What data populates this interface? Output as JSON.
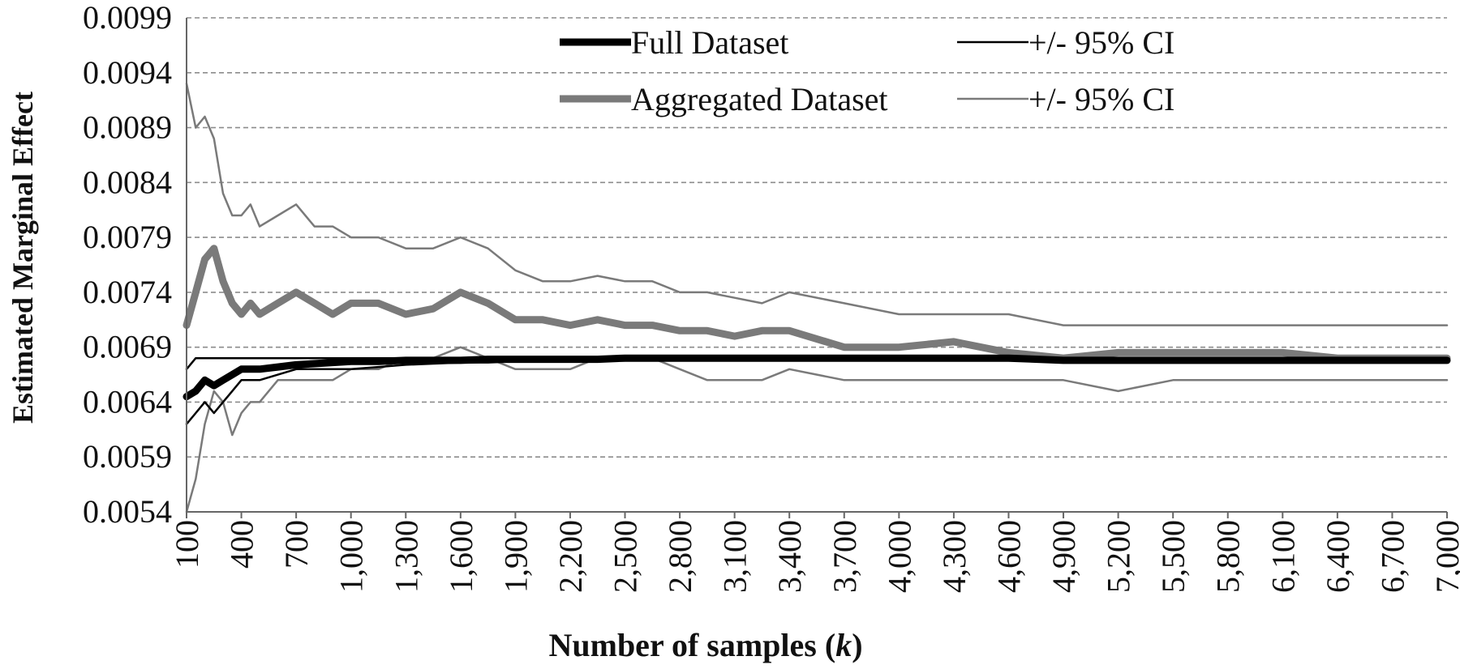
{
  "chart_data": {
    "type": "line",
    "title": "",
    "xlabel_prefix": "Number of samples (",
    "xlabel_var": "k",
    "xlabel_suffix": ")",
    "ylabel": "Estimated Marginal Effect",
    "xlim": [
      100,
      7000
    ],
    "ylim": [
      0.0054,
      0.0099
    ],
    "yticks": [
      "0.0054",
      "0.0059",
      "0.0064",
      "0.0069",
      "0.0074",
      "0.0079",
      "0.0084",
      "0.0089",
      "0.0094",
      "0.0099"
    ],
    "xticks": [
      "100",
      "400",
      "700",
      "1,000",
      "1,300",
      "1,600",
      "1,900",
      "2,200",
      "2,500",
      "2,800",
      "3,100",
      "3,400",
      "3,700",
      "4,000",
      "4,300",
      "4,600",
      "4,900",
      "5,200",
      "5,500",
      "5,800",
      "6,100",
      "6,400",
      "6,700",
      "7,000"
    ],
    "grid": "horizontal dashed",
    "legend_position": "top",
    "legend": {
      "full_label": "Full Dataset",
      "full_ci_label": "+/- 95% CI",
      "agg_label": "Aggregated Dataset",
      "agg_ci_label": "+/- 95% CI"
    },
    "colors": {
      "full": "#000000",
      "aggregated": "#7a7a7a",
      "grid": "#8c8c8c"
    },
    "x": [
      100,
      150,
      200,
      250,
      300,
      350,
      400,
      450,
      500,
      600,
      700,
      800,
      900,
      1000,
      1150,
      1300,
      1450,
      1600,
      1750,
      1900,
      2050,
      2200,
      2350,
      2500,
      2650,
      2800,
      2950,
      3100,
      3250,
      3400,
      3700,
      4000,
      4300,
      4600,
      4900,
      5200,
      5500,
      5800,
      6100,
      6400,
      6700,
      7000
    ],
    "series": [
      {
        "name": "Aggregated Dataset",
        "role": "estimate",
        "values": [
          0.0071,
          0.0074,
          0.0077,
          0.0078,
          0.0075,
          0.0073,
          0.0072,
          0.0073,
          0.0072,
          0.0073,
          0.0074,
          0.0073,
          0.0072,
          0.0073,
          0.0073,
          0.0072,
          0.00725,
          0.0074,
          0.0073,
          0.00715,
          0.00715,
          0.0071,
          0.00715,
          0.0071,
          0.0071,
          0.00705,
          0.00705,
          0.007,
          0.00705,
          0.00705,
          0.0069,
          0.0069,
          0.00695,
          0.00685,
          0.0068,
          0.00685,
          0.00685,
          0.00685,
          0.00685,
          0.0068,
          0.0068,
          0.0068
        ]
      },
      {
        "name": "+/- 95% CI",
        "role": "aggregated-upper",
        "values": [
          0.0093,
          0.0089,
          0.009,
          0.0088,
          0.0083,
          0.0081,
          0.0081,
          0.0082,
          0.008,
          0.0081,
          0.0082,
          0.008,
          0.008,
          0.0079,
          0.0079,
          0.0078,
          0.0078,
          0.0079,
          0.0078,
          0.0076,
          0.0075,
          0.0075,
          0.00755,
          0.0075,
          0.0075,
          0.0074,
          0.0074,
          0.00735,
          0.0073,
          0.0074,
          0.0073,
          0.0072,
          0.0072,
          0.0072,
          0.0071,
          0.0071,
          0.0071,
          0.0071,
          0.0071,
          0.0071,
          0.0071,
          0.0071
        ]
      },
      {
        "name": "+/- 95% CI",
        "role": "aggregated-lower",
        "values": [
          0.0054,
          0.0057,
          0.0062,
          0.0065,
          0.0064,
          0.0061,
          0.0063,
          0.0064,
          0.0064,
          0.0066,
          0.0066,
          0.0066,
          0.0066,
          0.0067,
          0.0067,
          0.0068,
          0.0068,
          0.0069,
          0.0068,
          0.0067,
          0.0067,
          0.0067,
          0.0068,
          0.0068,
          0.0068,
          0.0067,
          0.0066,
          0.0066,
          0.0066,
          0.0067,
          0.0066,
          0.0066,
          0.0066,
          0.0066,
          0.0066,
          0.0065,
          0.0066,
          0.0066,
          0.0066,
          0.0066,
          0.0066,
          0.0066
        ]
      },
      {
        "name": "Full Dataset",
        "role": "estimate",
        "values": [
          0.00645,
          0.0065,
          0.0066,
          0.00655,
          0.0066,
          0.00665,
          0.0067,
          0.0067,
          0.0067,
          0.00672,
          0.00674,
          0.00675,
          0.00676,
          0.00677,
          0.00677,
          0.00678,
          0.00678,
          0.00678,
          0.00679,
          0.00679,
          0.00679,
          0.00679,
          0.00679,
          0.0068,
          0.0068,
          0.0068,
          0.0068,
          0.0068,
          0.0068,
          0.0068,
          0.0068,
          0.0068,
          0.0068,
          0.0068,
          0.00678,
          0.00678,
          0.00678,
          0.00678,
          0.00678,
          0.00678,
          0.00678,
          0.00678
        ]
      },
      {
        "name": "+/- 95% CI",
        "role": "full-upper",
        "values": [
          0.0067,
          0.0068,
          0.0068,
          0.0068,
          0.0068,
          0.0068,
          0.0068,
          0.0068,
          0.0068,
          0.0068,
          0.0068,
          0.0068,
          0.0068,
          0.0068,
          0.0068,
          0.0068,
          0.0068,
          0.0068,
          0.0068,
          0.0068,
          0.0068,
          0.0068,
          0.0068,
          0.0068,
          0.0068,
          0.0068,
          0.0068,
          0.0068,
          0.0068,
          0.0068,
          0.0068,
          0.0068,
          0.0068,
          0.0068,
          0.0068,
          0.0068,
          0.0068,
          0.0068,
          0.0068,
          0.0068,
          0.0068,
          0.0068
        ]
      },
      {
        "name": "+/- 95% CI",
        "role": "full-lower",
        "values": [
          0.0062,
          0.0063,
          0.0064,
          0.0063,
          0.0064,
          0.0065,
          0.0066,
          0.0066,
          0.0066,
          0.00665,
          0.0067,
          0.0067,
          0.0067,
          0.0067,
          0.00672,
          0.00674,
          0.00675,
          0.00676,
          0.00676,
          0.00677,
          0.00677,
          0.00677,
          0.00677,
          0.00678,
          0.00678,
          0.00678,
          0.00678,
          0.00678,
          0.00678,
          0.00678,
          0.00678,
          0.00678,
          0.00678,
          0.00678,
          0.00676,
          0.00676,
          0.00676,
          0.00676,
          0.00676,
          0.00676,
          0.00676,
          0.00676
        ]
      }
    ]
  }
}
